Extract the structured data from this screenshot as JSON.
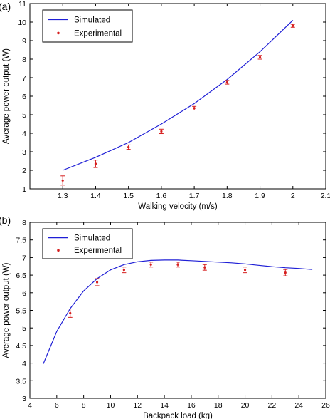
{
  "chart_data": [
    {
      "type": "line",
      "panel_label": "(a)",
      "xlabel": "Walking velocity (m/s)",
      "ylabel": "Average power output (W)",
      "xlim": [
        1.2,
        2.1
      ],
      "ylim": [
        1,
        11
      ],
      "xticks": [
        1.3,
        1.4,
        1.5,
        1.6,
        1.7,
        1.8,
        1.9,
        2,
        2.1
      ],
      "xtick_labels": [
        "1.3",
        "1.4",
        "1.5",
        "1.6",
        "1.7",
        "1.8",
        "1.9",
        "2",
        "2.1"
      ],
      "yticks": [
        1,
        2,
        3,
        4,
        5,
        6,
        7,
        8,
        9,
        10,
        11
      ],
      "ytick_labels": [
        "1",
        "2",
        "3",
        "4",
        "5",
        "6",
        "7",
        "8",
        "9",
        "10",
        "11"
      ],
      "legend_position": "top-left",
      "series": [
        {
          "name": "Simulated",
          "kind": "line",
          "color": "#1f1fd6",
          "x": [
            1.3,
            1.4,
            1.5,
            1.6,
            1.7,
            1.8,
            1.9,
            2.0
          ],
          "y": [
            2.0,
            2.7,
            3.5,
            4.5,
            5.6,
            6.9,
            8.4,
            10.1
          ]
        },
        {
          "name": "Experimental",
          "kind": "errorbar",
          "color": "#d61f1f",
          "x": [
            1.3,
            1.4,
            1.5,
            1.6,
            1.7,
            1.8,
            1.9,
            2.0
          ],
          "y": [
            1.45,
            2.35,
            3.25,
            4.1,
            5.35,
            6.75,
            8.1,
            9.8
          ],
          "error": [
            0.25,
            0.2,
            0.12,
            0.12,
            0.1,
            0.1,
            0.1,
            0.08
          ]
        }
      ]
    },
    {
      "type": "line",
      "panel_label": "(b)",
      "xlabel": "Backpack load (kg)",
      "ylabel": "Average power output (W)",
      "xlim": [
        4,
        26
      ],
      "ylim": [
        3,
        8
      ],
      "xticks": [
        4,
        6,
        8,
        10,
        12,
        14,
        16,
        18,
        20,
        22,
        24,
        26
      ],
      "xtick_labels": [
        "4",
        "6",
        "8",
        "10",
        "12",
        "14",
        "16",
        "18",
        "20",
        "22",
        "24",
        "26"
      ],
      "yticks": [
        3,
        3.5,
        4,
        4.5,
        5,
        5.5,
        6,
        6.5,
        7,
        7.5,
        8
      ],
      "ytick_labels": [
        "3",
        "3.5",
        "4",
        "4.5",
        "5",
        "5.5",
        "6",
        "6.5",
        "7",
        "7.5",
        "8"
      ],
      "legend_position": "top-left",
      "series": [
        {
          "name": "Simulated",
          "kind": "line",
          "color": "#1f1fd6",
          "x": [
            5,
            6,
            7,
            8,
            9,
            10,
            11,
            12,
            13,
            14,
            15,
            16,
            17,
            18,
            19,
            20,
            21,
            22,
            23,
            24,
            25
          ],
          "y": [
            3.98,
            4.9,
            5.55,
            6.05,
            6.4,
            6.65,
            6.8,
            6.88,
            6.92,
            6.93,
            6.93,
            6.91,
            6.89,
            6.87,
            6.85,
            6.82,
            6.78,
            6.74,
            6.71,
            6.69,
            6.66
          ]
        },
        {
          "name": "Experimental",
          "kind": "errorbar",
          "color": "#d61f1f",
          "x": [
            7,
            9,
            11,
            13,
            15,
            17,
            20,
            23
          ],
          "y": [
            5.42,
            6.3,
            6.65,
            6.8,
            6.8,
            6.72,
            6.65,
            6.57
          ],
          "error": [
            0.12,
            0.1,
            0.08,
            0.07,
            0.07,
            0.08,
            0.08,
            0.09
          ]
        }
      ]
    }
  ]
}
